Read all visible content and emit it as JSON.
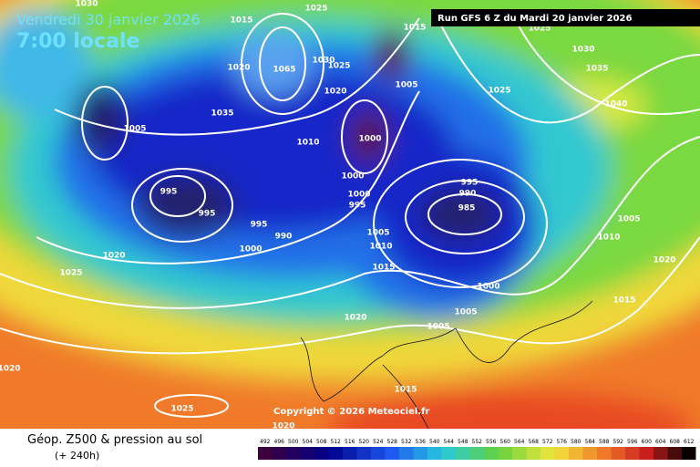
{
  "header": {
    "date": "Vendredi 30 janvier 2026",
    "time": "7:00 locale",
    "run": "Run GFS 6 Z du Mardi 20 janvier 2026"
  },
  "copyright": "Copyright © 2026 Meteociel.fr",
  "footer": {
    "title": "Géop. Z500 & pression au sol",
    "lead": "(+ 240h)"
  },
  "legend": {
    "values": [
      492,
      496,
      500,
      504,
      508,
      512,
      516,
      520,
      524,
      528,
      532,
      536,
      540,
      544,
      548,
      552,
      556,
      560,
      564,
      568,
      572,
      576,
      580,
      584,
      588,
      592,
      596,
      600,
      604,
      608,
      612
    ]
  },
  "isobar_labels": [
    1030,
    1015,
    1025,
    1015,
    1025,
    1030,
    1035,
    1040,
    1025,
    1020,
    1065,
    1030,
    1025,
    1020,
    1005,
    1035,
    1005,
    1010,
    1000,
    1000,
    1000,
    995,
    995,
    995,
    995,
    990,
    1000,
    995,
    990,
    985,
    1005,
    1010,
    1015,
    1020,
    1025,
    1005,
    1010,
    1020,
    1015,
    1000,
    1005,
    1005,
    1020,
    1020,
    1025,
    1015,
    1020
  ]
}
